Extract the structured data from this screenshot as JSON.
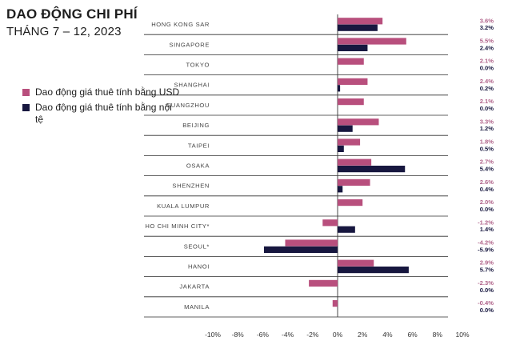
{
  "title": "DAO ĐỘNG CHI PHÍ",
  "subtitle": "THÁNG 7 – 12, 2023",
  "legend": {
    "usd": "Dao động giá thuê tính bằng USD",
    "local": "Dao động giá thuê tính bằng nội tệ"
  },
  "colors": {
    "usd": "#b84f7d",
    "local": "#17173f"
  },
  "chart_data": {
    "type": "bar",
    "orientation": "horizontal",
    "title": "DAO ĐỘNG CHI PHÍ",
    "subtitle": "THÁNG 7 – 12, 2023",
    "categories": [
      "HONG KONG SAR",
      "SINGAPORE",
      "TOKYO",
      "SHANGHAI",
      "GUANGZHOU",
      "BEIJING",
      "TAIPEI",
      "OSAKA",
      "SHENZHEN",
      "KUALA LUMPUR",
      "HO CHI MINH CITY*",
      "SEOUL*",
      "HANOI",
      "JAKARTA",
      "MANILA"
    ],
    "series": [
      {
        "name": "Dao động giá thuê tính bằng USD",
        "values": [
          3.6,
          5.5,
          2.1,
          2.4,
          2.1,
          3.3,
          1.8,
          2.7,
          2.6,
          2.0,
          -1.2,
          -4.2,
          2.9,
          -2.3,
          -0.4
        ],
        "labels": [
          "3.6%",
          "5.5%",
          "2.1%",
          "2.4%",
          "2.1%",
          "3.3%",
          "1.8%",
          "2.7%",
          "2.6%",
          "2.0%",
          "-1.2%",
          "-4.2%",
          "2.9%",
          "-2.3%",
          "-0.4%"
        ]
      },
      {
        "name": "Dao động giá thuê tính bằng nội tệ",
        "values": [
          3.2,
          2.4,
          0.0,
          0.2,
          0.0,
          1.2,
          0.5,
          5.4,
          0.4,
          0.0,
          1.4,
          -5.9,
          5.7,
          0.0,
          0.0
        ],
        "labels": [
          "3.2%",
          "2.4%",
          "0.0%",
          "0.2%",
          "0.0%",
          "1.2%",
          "0.5%",
          "5.4%",
          "0.4%",
          "0.0%",
          "1.4%",
          "-5.9%",
          "5.7%",
          "0.0%",
          "0.0%"
        ]
      }
    ],
    "xlim": [
      -10,
      10
    ],
    "xticks": [
      -10,
      -8,
      -6,
      -4,
      -2,
      0,
      2,
      4,
      6,
      8,
      10
    ],
    "xtick_labels": [
      "-10%",
      "-8%",
      "-6%",
      "-4%",
      "-2%",
      "0%",
      "2%",
      "4%",
      "6%",
      "8%",
      "10%"
    ],
    "legend_position": "left"
  }
}
